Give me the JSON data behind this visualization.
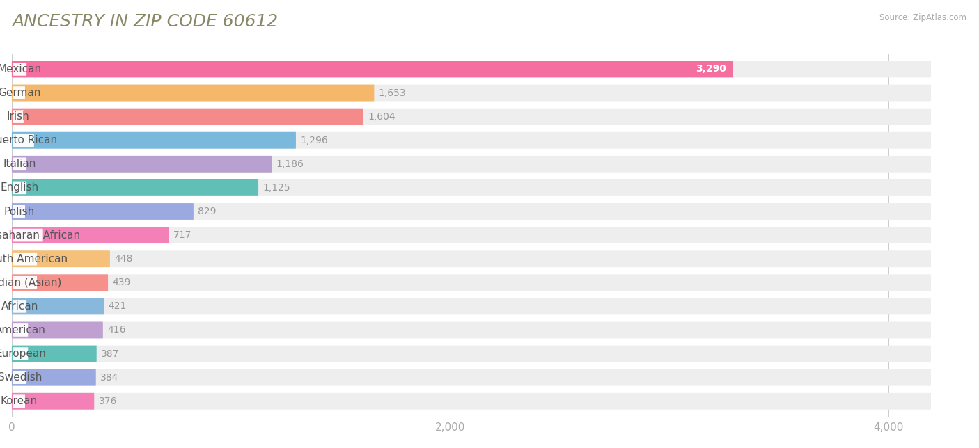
{
  "title": "ANCESTRY IN ZIP CODE 60612",
  "source": "Source: ZipAtlas.com",
  "categories": [
    "Mexican",
    "German",
    "Irish",
    "Puerto Rican",
    "Italian",
    "English",
    "Polish",
    "Subsaharan African",
    "South American",
    "Indian (Asian)",
    "African",
    "American",
    "European",
    "Swedish",
    "Korean"
  ],
  "values": [
    3290,
    1653,
    1604,
    1296,
    1186,
    1125,
    829,
    717,
    448,
    439,
    421,
    416,
    387,
    384,
    376
  ],
  "bar_colors": [
    "#F46FA0",
    "#F5B86A",
    "#F58A8A",
    "#7AB8DC",
    "#B8A0D0",
    "#60C0B8",
    "#9AAAE0",
    "#F480B8",
    "#F5C07A",
    "#F5908A",
    "#88B8DC",
    "#C0A0D0",
    "#60C0B8",
    "#9AAAE0",
    "#F480B8"
  ],
  "xlim": [
    0,
    4300
  ],
  "xticks": [
    0,
    2000,
    4000
  ],
  "xtick_labels": [
    "0",
    "2,000",
    "4,000"
  ],
  "background_color": "#ffffff",
  "bar_height": 0.7,
  "bar_bg_color": "#eeeeee",
  "title_fontsize": 18,
  "tick_fontsize": 11,
  "value_fontsize": 10,
  "label_fontsize": 11,
  "title_color": "#888866",
  "value_color": "#999999",
  "label_color": "#555555"
}
